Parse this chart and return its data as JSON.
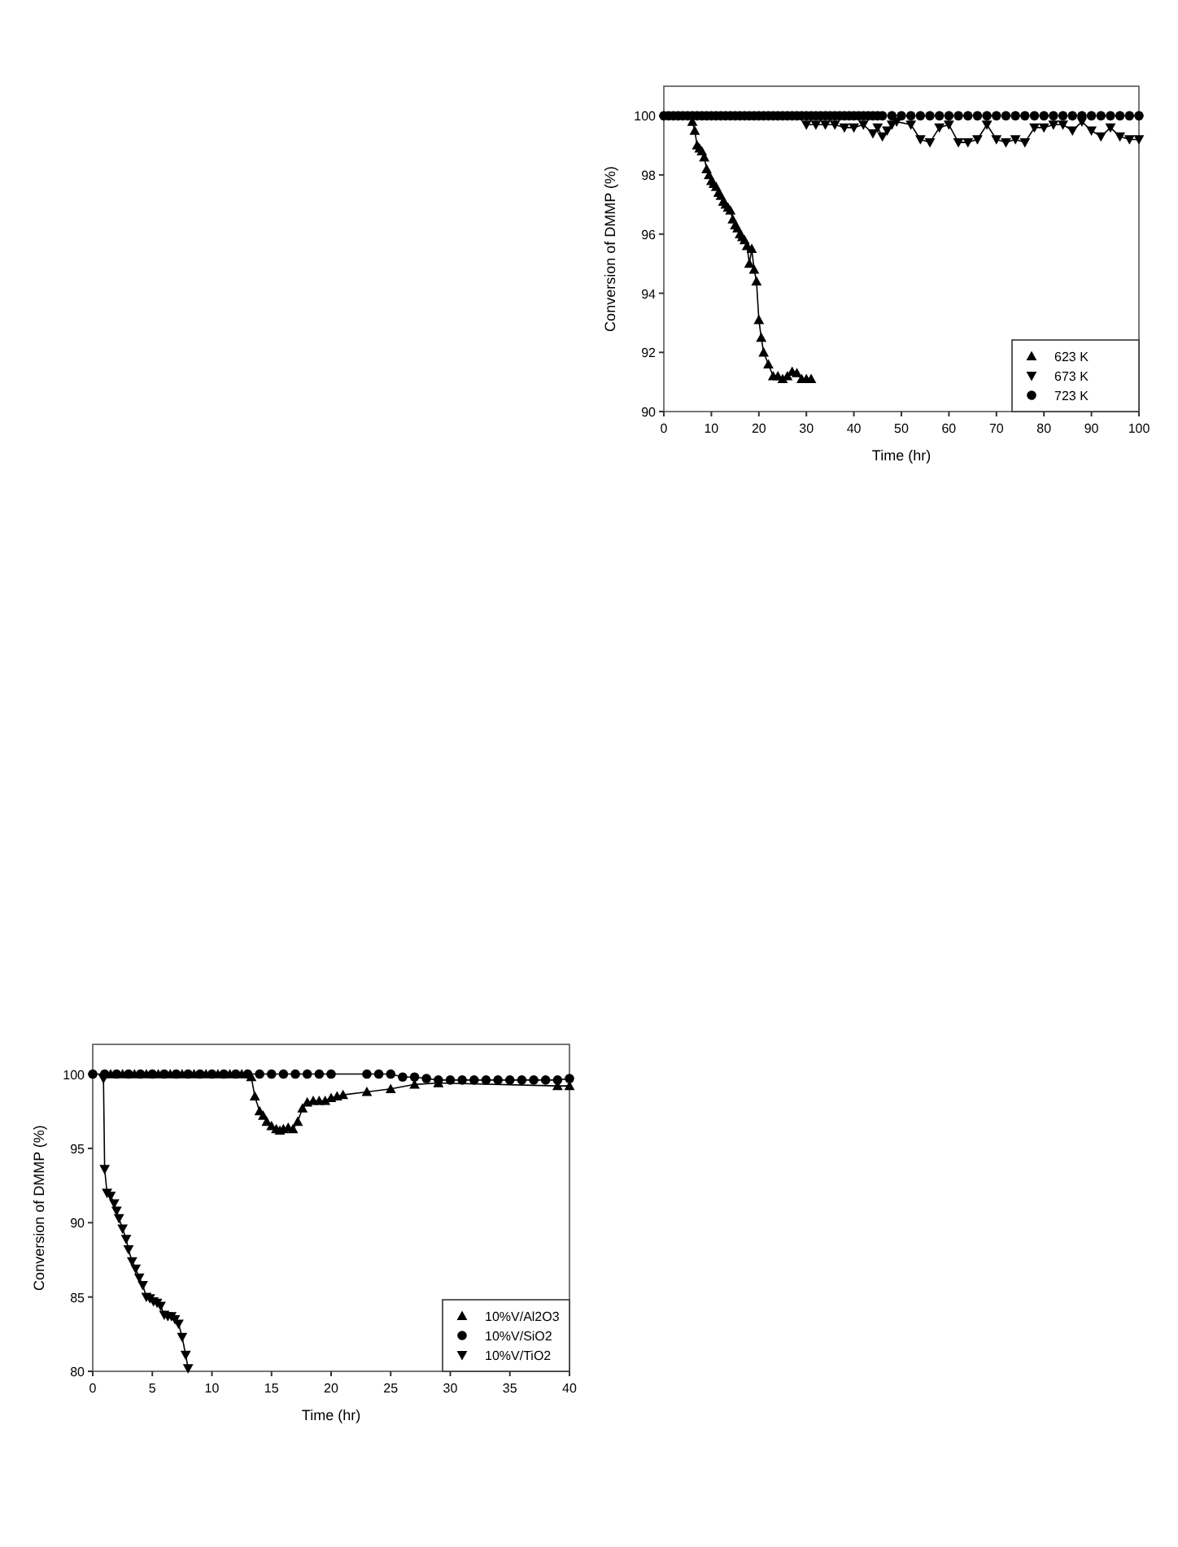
{
  "chart_data": [
    {
      "type": "line",
      "xlabel": "Time (hr)",
      "ylabel": "Conversion of DMMP (%)",
      "xlim": [
        0,
        100
      ],
      "ylim": [
        90,
        101
      ],
      "xticks": [
        0,
        10,
        20,
        30,
        40,
        50,
        60,
        70,
        80,
        90,
        100
      ],
      "yticks": [
        90,
        92,
        94,
        96,
        98,
        100
      ],
      "legend": "bottom right",
      "grid": false,
      "series": [
        {
          "name": "623 K",
          "color": "#000000",
          "marker": "triangle",
          "x": [
            6,
            6.5,
            7,
            7.5,
            8,
            8.5,
            9,
            9.5,
            10,
            10.5,
            11,
            11.5,
            12,
            12.5,
            13,
            13.5,
            14,
            14.5,
            15,
            15.5,
            16,
            16.5,
            17,
            17.5,
            18,
            18.5,
            19,
            19.5,
            20,
            20.5,
            21,
            21.5,
            22,
            23,
            24,
            25,
            26,
            27,
            28,
            29,
            30,
            31
          ],
          "values": [
            99.8,
            99.5,
            99.0,
            98.9,
            98.8,
            98.6,
            98.2,
            98.0,
            97.8,
            97.7,
            97.6,
            97.4,
            97.3,
            97.1,
            97.0,
            96.9,
            96.8,
            96.5,
            96.3,
            96.2,
            96.0,
            95.9,
            95.8,
            95.6,
            95.0,
            95.5,
            94.8,
            94.4,
            93.1,
            92.5,
            92.0,
            null,
            91.6,
            91.2,
            91.2,
            91.1,
            91.2,
            91.35,
            91.3,
            91.1,
            91.1,
            91.1
          ]
        },
        {
          "name": "673 K",
          "color": "#000000",
          "marker": "triangle-down",
          "x": [
            30,
            32,
            34,
            36,
            38,
            40,
            42,
            44,
            45,
            46,
            47,
            48,
            49,
            50,
            52,
            54,
            56,
            58,
            60,
            62,
            64,
            66,
            68,
            70,
            72,
            74,
            76,
            78,
            80,
            82,
            84,
            86,
            88,
            90,
            92,
            94,
            96,
            98,
            100
          ],
          "values": [
            99.7,
            99.7,
            99.7,
            99.7,
            99.6,
            99.6,
            99.7,
            99.4,
            99.6,
            99.3,
            99.5,
            99.7,
            99.8,
            null,
            99.7,
            99.2,
            99.1,
            99.6,
            99.7,
            99.1,
            99.1,
            99.2,
            99.7,
            99.2,
            99.1,
            99.2,
            99.1,
            99.6,
            99.6,
            99.7,
            99.7,
            99.5,
            99.8,
            99.5,
            99.3,
            99.6,
            99.3,
            99.2,
            99.2
          ]
        },
        {
          "name": "723 K",
          "type": "scatter",
          "color": "#000000",
          "marker": "circle",
          "x": [
            0,
            1,
            2,
            3,
            4,
            5,
            6,
            7,
            8,
            9,
            10,
            11,
            12,
            13,
            14,
            15,
            16,
            17,
            18,
            19,
            20,
            21,
            22,
            23,
            24,
            25,
            26,
            27,
            28,
            29,
            30,
            31,
            32,
            33,
            34,
            35,
            36,
            37,
            38,
            39,
            40,
            41,
            42,
            43,
            44,
            45,
            46,
            48,
            50,
            52,
            54,
            56,
            58,
            60,
            62,
            64,
            66,
            68,
            70,
            72,
            74,
            76,
            78,
            80,
            82,
            84,
            86,
            88,
            90,
            92,
            94,
            96,
            98,
            100
          ],
          "values": [
            100,
            100,
            100,
            100,
            100,
            100,
            100,
            100,
            100,
            100,
            100,
            100,
            100,
            100,
            100,
            100,
            100,
            100,
            100,
            100,
            100,
            100,
            100,
            100,
            100,
            100,
            100,
            100,
            100,
            100,
            100,
            100,
            100,
            100,
            100,
            100,
            100,
            100,
            100,
            100,
            100,
            100,
            100,
            100,
            100,
            100,
            100,
            100,
            100,
            100,
            100,
            100,
            100,
            100,
            100,
            100,
            100,
            100,
            100,
            100,
            100,
            100,
            100,
            100,
            100,
            100,
            100,
            100,
            100,
            100,
            100,
            100,
            100,
            100
          ]
        }
      ]
    },
    {
      "type": "line",
      "xlabel": "Time (hr)",
      "ylabel": "Conversion of DMMP (%)",
      "xlim": [
        0,
        40
      ],
      "ylim": [
        80,
        102
      ],
      "xticks": [
        0,
        5,
        10,
        15,
        20,
        25,
        30,
        35,
        40
      ],
      "yticks": [
        80,
        85,
        90,
        95,
        100
      ],
      "legend": "bottom right",
      "grid": false,
      "series": [
        {
          "name": "10%V/Al2O3",
          "color": "#000000",
          "marker": "triangle",
          "x": [
            1.5,
            2.5,
            3.5,
            4.5,
            5.5,
            6.5,
            7.5,
            8.5,
            9.5,
            10.5,
            11.5,
            12.5,
            13.3,
            13.6,
            14,
            14.3,
            14.6,
            15,
            15.4,
            15.7,
            16,
            16.4,
            16.8,
            17.2,
            17.6,
            18,
            18.5,
            19,
            19.5,
            20,
            20.5,
            21,
            23,
            25,
            27,
            29,
            39,
            40
          ],
          "values": [
            100,
            100,
            100,
            100,
            100,
            100,
            100,
            100,
            100,
            100,
            100,
            100,
            99.8,
            98.5,
            97.5,
            97.2,
            96.8,
            96.5,
            96.3,
            96.2,
            96.3,
            96.4,
            96.3,
            96.8,
            97.7,
            98.1,
            98.2,
            98.2,
            98.2,
            98.4,
            98.5,
            98.6,
            98.8,
            99.0,
            99.3,
            99.4,
            99.2,
            99.2
          ]
        },
        {
          "name": "10%V/SiO2",
          "color": "#000000",
          "marker": "circle",
          "x": [
            0,
            1,
            2,
            3,
            4,
            5,
            6,
            7,
            8,
            9,
            10,
            11,
            12,
            13,
            14,
            15,
            16,
            17,
            18,
            19,
            20,
            23,
            24,
            25,
            26,
            27,
            28,
            29,
            30,
            31,
            32,
            33,
            34,
            35,
            36,
            37,
            38,
            39,
            40
          ],
          "values": [
            100,
            100,
            100,
            100,
            100,
            100,
            100,
            100,
            100,
            100,
            100,
            100,
            100,
            100,
            100,
            100,
            100,
            100,
            100,
            100,
            100,
            100,
            100,
            100,
            99.8,
            99.8,
            99.7,
            99.6,
            99.6,
            99.6,
            99.6,
            99.6,
            99.6,
            99.6,
            99.6,
            99.6,
            99.6,
            99.6,
            99.7
          ]
        },
        {
          "name": "10%V/TiO2",
          "color": "#000000",
          "marker": "triangle-down",
          "x": [
            0.9,
            1.0,
            1.2,
            1.5,
            1.8,
            2,
            2.2,
            2.5,
            2.8,
            3,
            3.3,
            3.6,
            3.9,
            4.2,
            4.5,
            4.8,
            5.1,
            5.4,
            5.7,
            6,
            6.3,
            6.6,
            6.9,
            7.2,
            7.5,
            7.8,
            8
          ],
          "values": [
            99.7,
            93.6,
            92,
            91.8,
            91.3,
            90.8,
            90.3,
            89.6,
            88.9,
            88.2,
            87.4,
            86.9,
            86.3,
            85.8,
            85.0,
            84.9,
            84.7,
            84.6,
            84.4,
            83.8,
            83.7,
            83.7,
            83.5,
            83.2,
            82.3,
            81.1,
            80.2
          ]
        }
      ]
    }
  ]
}
